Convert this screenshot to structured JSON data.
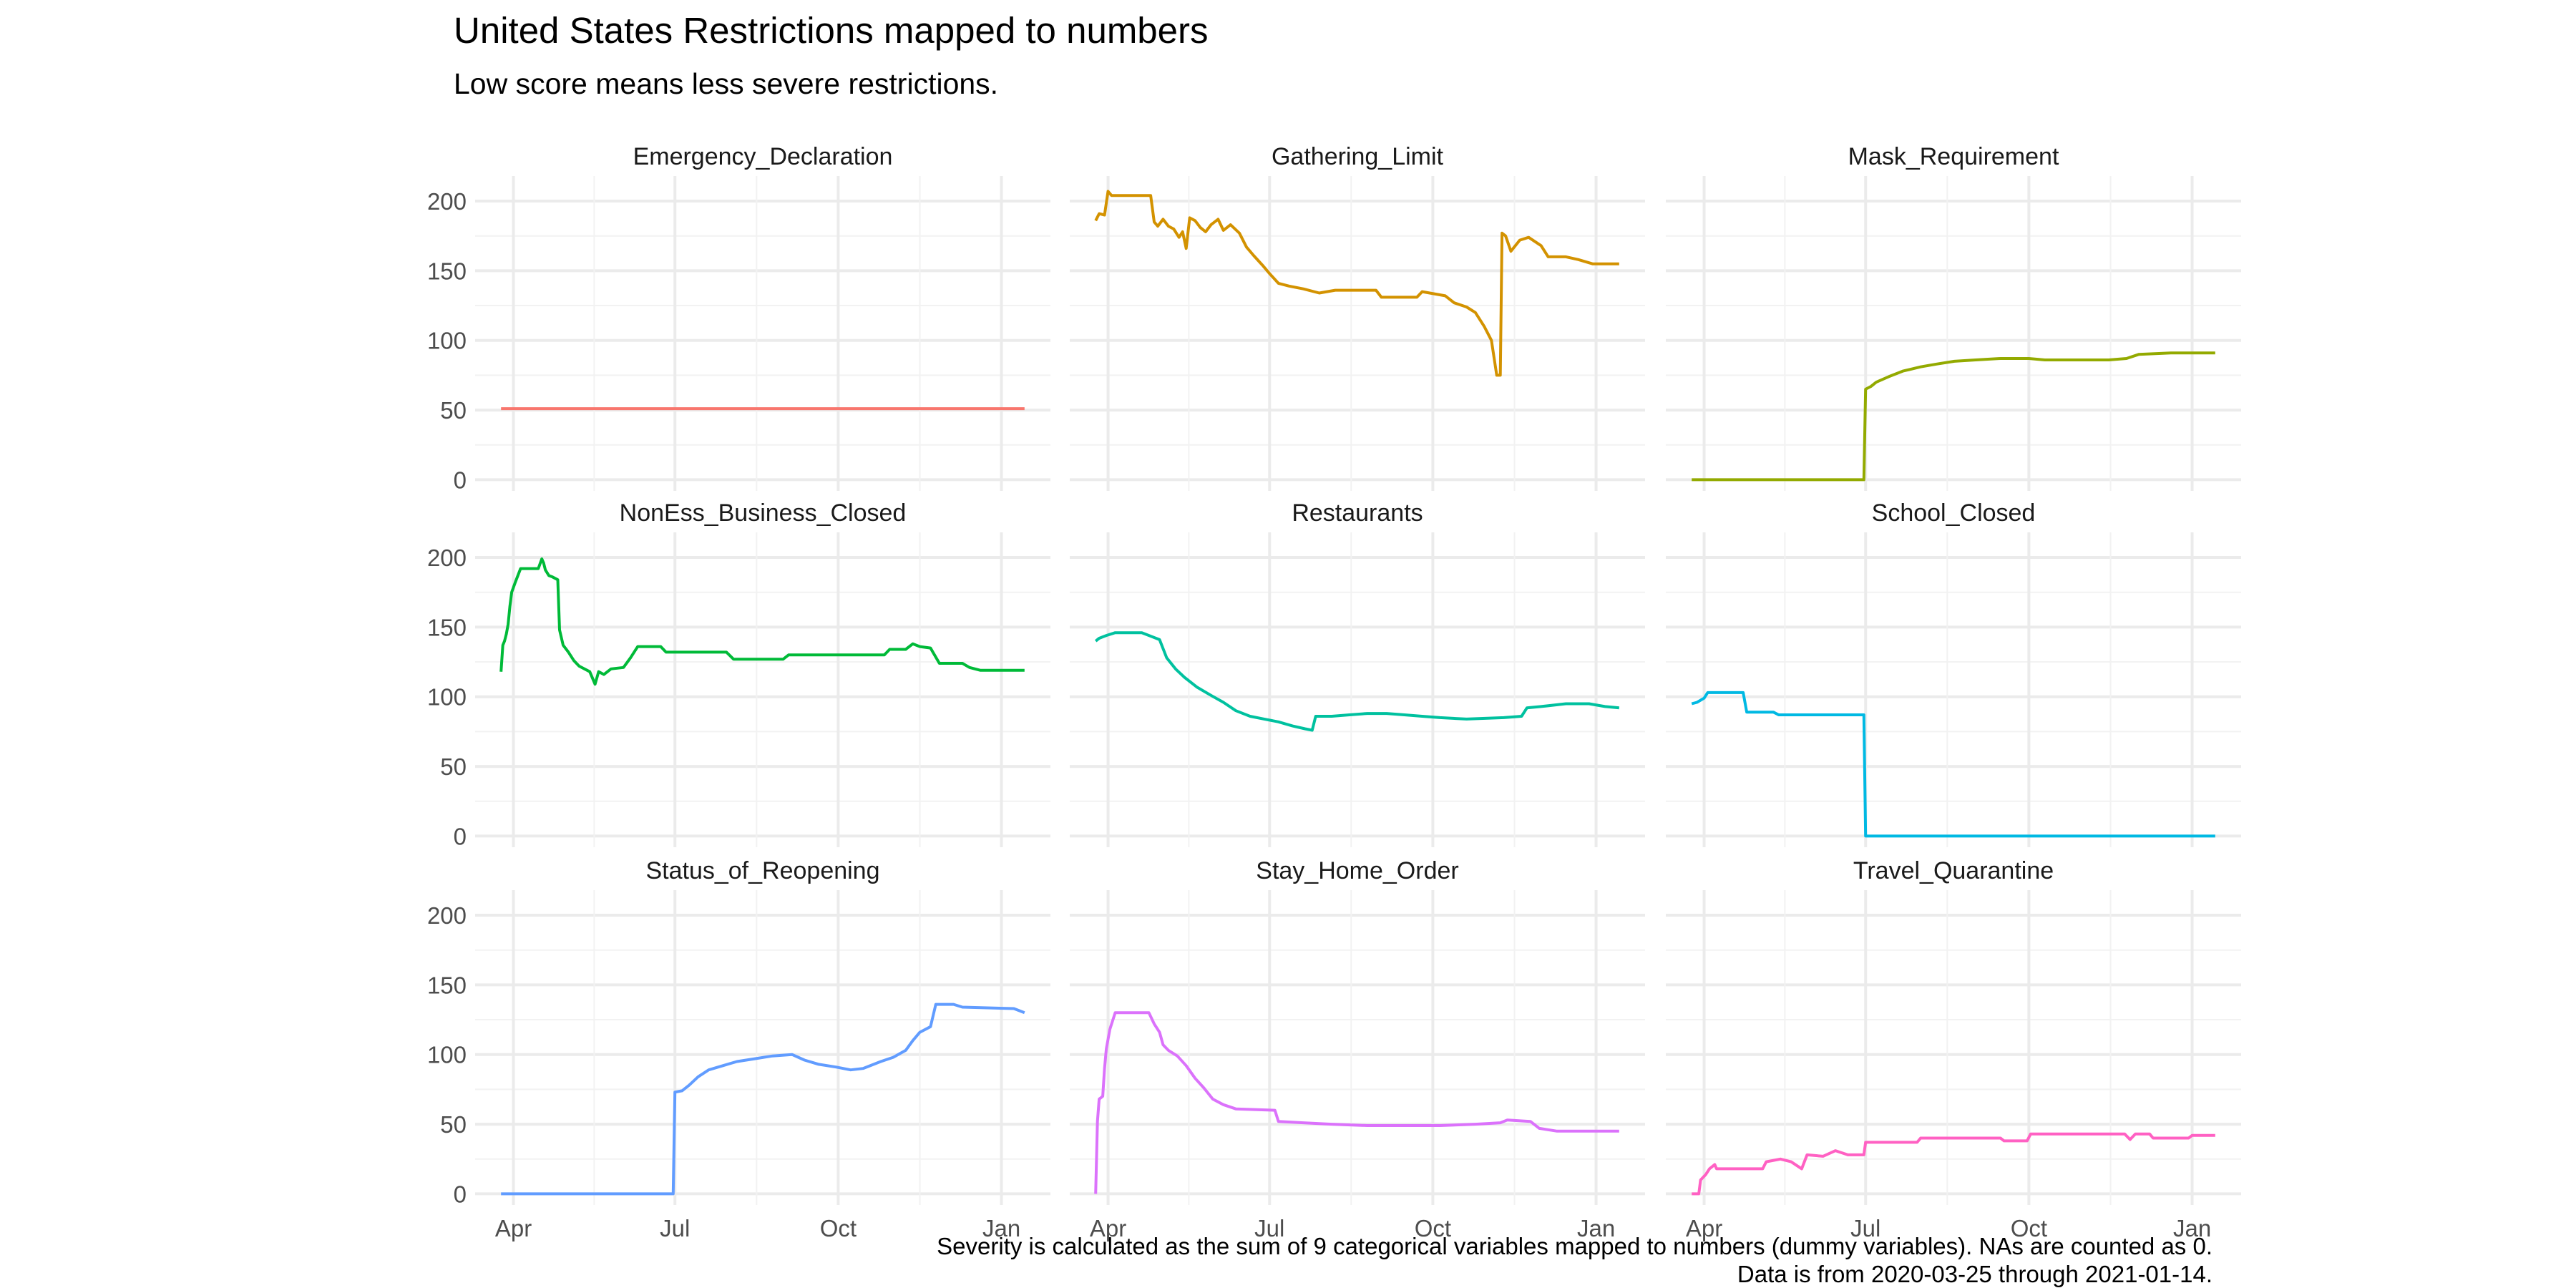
{
  "chart_data": {
    "type": "line",
    "title": "United States Restrictions mapped to numbers",
    "subtitle": "Low score means less severe restrictions.",
    "caption": [
      "Severity is calculated as the sum of 9 categorical variables mapped to numbers (dummy variables). NAs are counted as 0.",
      "Data is from 2020-03-25 through 2021-01-14."
    ],
    "date_range": [
      "2020-03-25",
      "2021-01-14"
    ],
    "x_ticks": [
      {
        "date": "2020-04-01",
        "label": "Apr"
      },
      {
        "date": "2020-07-01",
        "label": "Jul"
      },
      {
        "date": "2020-10-01",
        "label": "Oct"
      },
      {
        "date": "2021-01-01",
        "label": "Jan"
      }
    ],
    "ylim": [
      -8,
      218
    ],
    "y_ticks": [
      0,
      50,
      100,
      150,
      200
    ],
    "grid": true,
    "legend": "none",
    "facets": [
      {
        "name": "Emergency_Declaration",
        "color": "#F8766D",
        "points": [
          [
            "2020-03-25",
            51
          ],
          [
            "2021-01-14",
            51
          ]
        ]
      },
      {
        "name": "Gathering_Limit",
        "color": "#D39200",
        "points": [
          [
            "2020-03-25",
            186
          ],
          [
            "2020-03-27",
            191
          ],
          [
            "2020-03-30",
            190
          ],
          [
            "2020-04-01",
            207
          ],
          [
            "2020-04-03",
            204
          ],
          [
            "2020-04-25",
            204
          ],
          [
            "2020-04-27",
            185
          ],
          [
            "2020-04-29",
            182
          ],
          [
            "2020-05-02",
            187
          ],
          [
            "2020-05-05",
            182
          ],
          [
            "2020-05-08",
            180
          ],
          [
            "2020-05-11",
            174
          ],
          [
            "2020-05-13",
            178
          ],
          [
            "2020-05-15",
            166
          ],
          [
            "2020-05-17",
            188
          ],
          [
            "2020-05-20",
            186
          ],
          [
            "2020-05-23",
            181
          ],
          [
            "2020-05-26",
            178
          ],
          [
            "2020-05-29",
            183
          ],
          [
            "2020-06-02",
            187
          ],
          [
            "2020-06-05",
            179
          ],
          [
            "2020-06-09",
            183
          ],
          [
            "2020-06-14",
            177
          ],
          [
            "2020-06-18",
            167
          ],
          [
            "2020-06-22",
            161
          ],
          [
            "2020-06-27",
            154
          ],
          [
            "2020-07-01",
            148
          ],
          [
            "2020-07-06",
            141
          ],
          [
            "2020-07-12",
            139
          ],
          [
            "2020-07-20",
            137
          ],
          [
            "2020-07-29",
            134
          ],
          [
            "2020-08-07",
            136
          ],
          [
            "2020-08-30",
            136
          ],
          [
            "2020-09-02",
            131
          ],
          [
            "2020-09-22",
            131
          ],
          [
            "2020-09-25",
            135
          ],
          [
            "2020-10-08",
            132
          ],
          [
            "2020-10-13",
            127
          ],
          [
            "2020-10-20",
            124
          ],
          [
            "2020-10-25",
            120
          ],
          [
            "2020-10-30",
            110
          ],
          [
            "2020-11-03",
            100
          ],
          [
            "2020-11-06",
            75
          ],
          [
            "2020-11-08",
            75
          ],
          [
            "2020-11-09",
            177
          ],
          [
            "2020-11-11",
            175
          ],
          [
            "2020-11-14",
            164
          ],
          [
            "2020-11-19",
            172
          ],
          [
            "2020-11-24",
            174
          ],
          [
            "2020-12-01",
            168
          ],
          [
            "2020-12-05",
            160
          ],
          [
            "2020-12-15",
            160
          ],
          [
            "2020-12-22",
            158
          ],
          [
            "2020-12-30",
            155
          ],
          [
            "2021-01-14",
            155
          ]
        ]
      },
      {
        "name": "Mask_Requirement",
        "color": "#93AA00",
        "points": [
          [
            "2020-03-25",
            0
          ],
          [
            "2020-06-30",
            0
          ],
          [
            "2020-07-01",
            65
          ],
          [
            "2020-07-04",
            67
          ],
          [
            "2020-07-07",
            70
          ],
          [
            "2020-07-14",
            74
          ],
          [
            "2020-07-22",
            78
          ],
          [
            "2020-08-01",
            81
          ],
          [
            "2020-08-10",
            83
          ],
          [
            "2020-08-20",
            85
          ],
          [
            "2020-09-01",
            86
          ],
          [
            "2020-09-15",
            87
          ],
          [
            "2020-10-01",
            87
          ],
          [
            "2020-10-10",
            86
          ],
          [
            "2020-11-15",
            86
          ],
          [
            "2020-11-25",
            87
          ],
          [
            "2020-12-02",
            90
          ],
          [
            "2020-12-20",
            91
          ],
          [
            "2021-01-14",
            91
          ]
        ]
      },
      {
        "name": "NonEss_Business_Closed",
        "color": "#00BA38",
        "points": [
          [
            "2020-03-25",
            118
          ],
          [
            "2020-03-26",
            137
          ],
          [
            "2020-03-27",
            140
          ],
          [
            "2020-03-28",
            145
          ],
          [
            "2020-03-29",
            152
          ],
          [
            "2020-03-30",
            165
          ],
          [
            "2020-03-31",
            175
          ],
          [
            "2020-04-02",
            182
          ],
          [
            "2020-04-05",
            192
          ],
          [
            "2020-04-15",
            192
          ],
          [
            "2020-04-17",
            199
          ],
          [
            "2020-04-18",
            196
          ],
          [
            "2020-04-19",
            191
          ],
          [
            "2020-04-21",
            187
          ],
          [
            "2020-04-23",
            186
          ],
          [
            "2020-04-26",
            184
          ],
          [
            "2020-04-27",
            148
          ],
          [
            "2020-04-29",
            137
          ],
          [
            "2020-05-02",
            132
          ],
          [
            "2020-05-05",
            126
          ],
          [
            "2020-05-08",
            122
          ],
          [
            "2020-05-14",
            118
          ],
          [
            "2020-05-17",
            109
          ],
          [
            "2020-05-19",
            118
          ],
          [
            "2020-05-22",
            116
          ],
          [
            "2020-05-26",
            120
          ],
          [
            "2020-06-02",
            121
          ],
          [
            "2020-06-06",
            128
          ],
          [
            "2020-06-10",
            136
          ],
          [
            "2020-06-23",
            136
          ],
          [
            "2020-06-26",
            132
          ],
          [
            "2020-07-30",
            132
          ],
          [
            "2020-08-03",
            127
          ],
          [
            "2020-08-31",
            127
          ],
          [
            "2020-09-03",
            130
          ],
          [
            "2020-10-27",
            130
          ],
          [
            "2020-10-30",
            134
          ],
          [
            "2020-11-08",
            134
          ],
          [
            "2020-11-12",
            138
          ],
          [
            "2020-11-16",
            136
          ],
          [
            "2020-11-22",
            135
          ],
          [
            "2020-11-27",
            124
          ],
          [
            "2020-12-10",
            124
          ],
          [
            "2020-12-14",
            121
          ],
          [
            "2020-12-20",
            119
          ],
          [
            "2021-01-14",
            119
          ]
        ]
      },
      {
        "name": "Restaurants",
        "color": "#00C19F",
        "points": [
          [
            "2020-03-25",
            140
          ],
          [
            "2020-03-27",
            142
          ],
          [
            "2020-03-31",
            144
          ],
          [
            "2020-04-05",
            146
          ],
          [
            "2020-04-20",
            146
          ],
          [
            "2020-04-30",
            141
          ],
          [
            "2020-05-04",
            128
          ],
          [
            "2020-05-09",
            120
          ],
          [
            "2020-05-14",
            114
          ],
          [
            "2020-05-21",
            107
          ],
          [
            "2020-05-29",
            101
          ],
          [
            "2020-06-05",
            96
          ],
          [
            "2020-06-12",
            90
          ],
          [
            "2020-06-20",
            86
          ],
          [
            "2020-06-28",
            84
          ],
          [
            "2020-07-06",
            82
          ],
          [
            "2020-07-14",
            79
          ],
          [
            "2020-07-21",
            77
          ],
          [
            "2020-07-25",
            76
          ],
          [
            "2020-07-27",
            86
          ],
          [
            "2020-08-05",
            86
          ],
          [
            "2020-08-15",
            87
          ],
          [
            "2020-08-25",
            88
          ],
          [
            "2020-09-05",
            88
          ],
          [
            "2020-09-15",
            87
          ],
          [
            "2020-09-25",
            86
          ],
          [
            "2020-10-05",
            85
          ],
          [
            "2020-10-20",
            84
          ],
          [
            "2020-11-10",
            85
          ],
          [
            "2020-11-20",
            86
          ],
          [
            "2020-11-23",
            92
          ],
          [
            "2020-12-01",
            93
          ],
          [
            "2020-12-15",
            95
          ],
          [
            "2020-12-28",
            95
          ],
          [
            "2021-01-06",
            93
          ],
          [
            "2021-01-14",
            92
          ]
        ]
      },
      {
        "name": "School_Closed",
        "color": "#00B9E3",
        "points": [
          [
            "2020-03-25",
            95
          ],
          [
            "2020-03-28",
            96
          ],
          [
            "2020-04-01",
            99
          ],
          [
            "2020-04-03",
            103
          ],
          [
            "2020-04-23",
            103
          ],
          [
            "2020-04-25",
            89
          ],
          [
            "2020-05-10",
            89
          ],
          [
            "2020-05-13",
            87
          ],
          [
            "2020-06-30",
            87
          ],
          [
            "2020-07-01",
            0
          ],
          [
            "2021-01-14",
            0
          ]
        ]
      },
      {
        "name": "Status_of_Reopening",
        "color": "#619CFF",
        "points": [
          [
            "2020-03-25",
            0
          ],
          [
            "2020-06-30",
            0
          ],
          [
            "2020-07-01",
            73
          ],
          [
            "2020-07-05",
            74
          ],
          [
            "2020-07-09",
            78
          ],
          [
            "2020-07-14",
            84
          ],
          [
            "2020-07-20",
            89
          ],
          [
            "2020-07-28",
            92
          ],
          [
            "2020-08-05",
            95
          ],
          [
            "2020-08-15",
            97
          ],
          [
            "2020-08-25",
            99
          ],
          [
            "2020-09-05",
            100
          ],
          [
            "2020-09-12",
            96
          ],
          [
            "2020-09-20",
            93
          ],
          [
            "2020-09-30",
            91
          ],
          [
            "2020-10-08",
            89
          ],
          [
            "2020-10-15",
            90
          ],
          [
            "2020-10-25",
            95
          ],
          [
            "2020-11-01",
            98
          ],
          [
            "2020-11-08",
            103
          ],
          [
            "2020-11-12",
            110
          ],
          [
            "2020-11-16",
            116
          ],
          [
            "2020-11-22",
            120
          ],
          [
            "2020-11-25",
            136
          ],
          [
            "2020-12-05",
            136
          ],
          [
            "2020-12-10",
            134
          ],
          [
            "2021-01-08",
            133
          ],
          [
            "2021-01-14",
            130
          ]
        ]
      },
      {
        "name": "Stay_Home_Order",
        "color": "#DB72FB",
        "points": [
          [
            "2020-03-25",
            0
          ],
          [
            "2020-03-26",
            52
          ],
          [
            "2020-03-27",
            68
          ],
          [
            "2020-03-29",
            70
          ],
          [
            "2020-03-30",
            90
          ],
          [
            "2020-03-31",
            104
          ],
          [
            "2020-04-02",
            118
          ],
          [
            "2020-04-05",
            130
          ],
          [
            "2020-04-24",
            130
          ],
          [
            "2020-04-27",
            122
          ],
          [
            "2020-04-30",
            116
          ],
          [
            "2020-05-02",
            107
          ],
          [
            "2020-05-05",
            103
          ],
          [
            "2020-05-10",
            99
          ],
          [
            "2020-05-15",
            92
          ],
          [
            "2020-05-20",
            83
          ],
          [
            "2020-05-25",
            76
          ],
          [
            "2020-05-30",
            68
          ],
          [
            "2020-06-05",
            64
          ],
          [
            "2020-06-12",
            61
          ],
          [
            "2020-07-04",
            60
          ],
          [
            "2020-07-06",
            52
          ],
          [
            "2020-07-20",
            51
          ],
          [
            "2020-08-05",
            50
          ],
          [
            "2020-08-25",
            49
          ],
          [
            "2020-10-05",
            49
          ],
          [
            "2020-10-25",
            50
          ],
          [
            "2020-11-08",
            51
          ],
          [
            "2020-11-12",
            53
          ],
          [
            "2020-11-25",
            52
          ],
          [
            "2020-11-30",
            47
          ],
          [
            "2020-12-10",
            45
          ],
          [
            "2021-01-14",
            45
          ]
        ]
      },
      {
        "name": "Travel_Quarantine",
        "color": "#FF61C3",
        "points": [
          [
            "2020-03-25",
            0
          ],
          [
            "2020-03-29",
            0
          ],
          [
            "2020-03-30",
            10
          ],
          [
            "2020-04-02",
            14
          ],
          [
            "2020-04-04",
            18
          ],
          [
            "2020-04-07",
            21
          ],
          [
            "2020-04-08",
            18
          ],
          [
            "2020-05-04",
            18
          ],
          [
            "2020-05-06",
            23
          ],
          [
            "2020-05-14",
            25
          ],
          [
            "2020-05-20",
            23
          ],
          [
            "2020-05-26",
            18
          ],
          [
            "2020-05-29",
            28
          ],
          [
            "2020-06-07",
            27
          ],
          [
            "2020-06-14",
            31
          ],
          [
            "2020-06-21",
            28
          ],
          [
            "2020-06-30",
            28
          ],
          [
            "2020-07-01",
            37
          ],
          [
            "2020-07-30",
            37
          ],
          [
            "2020-08-01",
            40
          ],
          [
            "2020-09-15",
            40
          ],
          [
            "2020-09-17",
            38
          ],
          [
            "2020-09-30",
            38
          ],
          [
            "2020-10-02",
            43
          ],
          [
            "2020-11-24",
            43
          ],
          [
            "2020-11-27",
            39
          ],
          [
            "2020-11-30",
            43
          ],
          [
            "2020-12-08",
            43
          ],
          [
            "2020-12-10",
            40
          ],
          [
            "2020-12-30",
            40
          ],
          [
            "2021-01-01",
            42
          ],
          [
            "2021-01-14",
            42
          ]
        ]
      }
    ]
  }
}
